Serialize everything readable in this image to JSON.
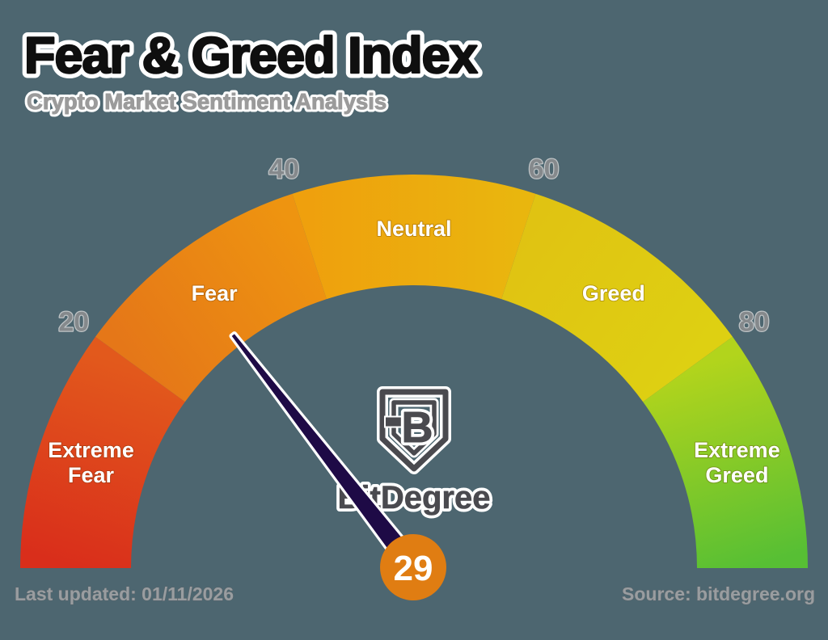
{
  "title": "Fear & Greed Index",
  "subtitle": "Crypto Market Sentiment Analysis",
  "footer": {
    "last_updated": "Last updated: 01/11/2026",
    "source": "Source: bitdegree.org"
  },
  "brand": {
    "monogram": "B",
    "wordmark": "BitDegree"
  },
  "colors": {
    "background": "#4d6670",
    "title_text": "#0f0f0f",
    "subtitle_text": "#9b9b9b",
    "tick_text": "#85898c",
    "region_label_text": "#ffffff",
    "footer_text": "#999da0",
    "needle": "#1e0a46",
    "needle_outline": "#ffffff",
    "badge": "#e07d12",
    "badge_text": "#ffffff",
    "logo_gray": "#4a4a4f"
  },
  "chart_data": {
    "type": "gauge",
    "title": "Fear & Greed Index",
    "subtitle": "Crypto Market Sentiment Analysis",
    "min": 0,
    "max": 100,
    "value": 29,
    "value_label": "29",
    "value_category": "Fear",
    "arc_span_deg": 180,
    "ticks": [
      20,
      40,
      60,
      80
    ],
    "legend_position": "none",
    "segments": [
      {
        "label": "Extreme Fear",
        "lines": [
          "Extreme",
          "Fear"
        ],
        "from": 0,
        "to": 20,
        "color_start": "#d92e1b",
        "color_end": "#e2591c"
      },
      {
        "label": "Fear",
        "lines": [
          "Fear"
        ],
        "from": 20,
        "to": 40,
        "color_start": "#e57718",
        "color_end": "#ee9410"
      },
      {
        "label": "Neutral",
        "lines": [
          "Neutral"
        ],
        "from": 40,
        "to": 60,
        "color_start": "#efa00d",
        "color_end": "#e9b60e"
      },
      {
        "label": "Greed",
        "lines": [
          "Greed"
        ],
        "from": 60,
        "to": 80,
        "color_start": "#e0c312",
        "color_end": "#ded012"
      },
      {
        "label": "Extreme Greed",
        "lines": [
          "Extreme",
          "Greed"
        ],
        "from": 80,
        "to": 100,
        "color_start": "#b2d41c",
        "color_end": "#57bf34"
      }
    ]
  }
}
